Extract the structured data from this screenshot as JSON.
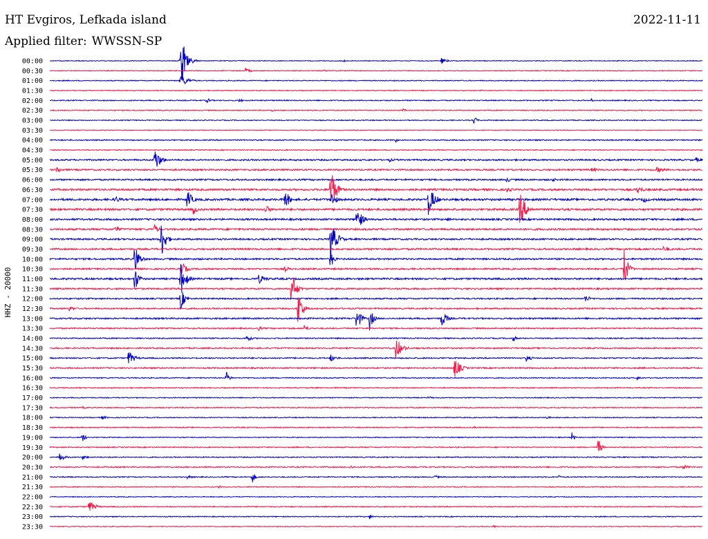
{
  "header": {
    "station": "HT Evgiros, Lefkada island",
    "filter_label": "Applied filter:",
    "filter_value": "WWSSN-SP",
    "date": "2022-11-11"
  },
  "chart_data": {
    "type": "line",
    "ylabel": "HHZ - 20000",
    "colors": [
      "#0000cc",
      "#ff1040"
    ],
    "rows": [
      {
        "label": "00:00",
        "color": "#0000cc",
        "noise": 0.6,
        "events": [
          {
            "t": 0.2,
            "a": 50,
            "w": 0.007
          },
          {
            "t": 0.45,
            "a": 3,
            "w": 0.003
          },
          {
            "t": 0.6,
            "a": 5,
            "w": 0.008
          }
        ]
      },
      {
        "label": "00:30",
        "color": "#ff1040",
        "noise": 0.6,
        "events": [
          {
            "t": 0.3,
            "a": 4,
            "w": 0.007
          },
          {
            "t": 0.42,
            "a": 2,
            "w": 0.005
          }
        ]
      },
      {
        "label": "01:00",
        "color": "#0000cc",
        "noise": 0.7,
        "events": [
          {
            "t": 0.2,
            "a": 10,
            "w": 0.01
          }
        ]
      },
      {
        "label": "01:30",
        "color": "#ff1040",
        "noise": 0.6,
        "events": [
          {
            "t": 0.66,
            "a": 2,
            "w": 0.004
          }
        ]
      },
      {
        "label": "02:00",
        "color": "#0000cc",
        "noise": 0.8,
        "events": [
          {
            "t": 0.24,
            "a": 4,
            "w": 0.007
          },
          {
            "t": 0.29,
            "a": 3,
            "w": 0.006
          },
          {
            "t": 0.83,
            "a": 3,
            "w": 0.003
          }
        ]
      },
      {
        "label": "02:30",
        "color": "#ff1040",
        "noise": 0.7,
        "events": [
          {
            "t": 0.34,
            "a": 2,
            "w": 0.004
          },
          {
            "t": 0.54,
            "a": 3,
            "w": 0.005
          }
        ]
      },
      {
        "label": "03:00",
        "color": "#0000cc",
        "noise": 0.7,
        "events": [
          {
            "t": 0.65,
            "a": 9,
            "w": 0.003
          }
        ]
      },
      {
        "label": "03:30",
        "color": "#ff1040",
        "noise": 0.5,
        "events": []
      },
      {
        "label": "04:00",
        "color": "#0000cc",
        "noise": 0.9,
        "events": [
          {
            "t": 0.53,
            "a": 3,
            "w": 0.004
          }
        ]
      },
      {
        "label": "04:30",
        "color": "#ff1040",
        "noise": 0.7,
        "events": []
      },
      {
        "label": "05:00",
        "color": "#0000cc",
        "noise": 1.2,
        "events": [
          {
            "t": 0.16,
            "a": 20,
            "w": 0.008
          },
          {
            "t": 0.52,
            "a": 3,
            "w": 0.008
          },
          {
            "t": 0.99,
            "a": 4,
            "w": 0.01
          }
        ]
      },
      {
        "label": "05:30",
        "color": "#ff1040",
        "noise": 1.2,
        "events": [
          {
            "t": 0.01,
            "a": 6,
            "w": 0.008
          },
          {
            "t": 0.83,
            "a": 3,
            "w": 0.015
          },
          {
            "t": 0.93,
            "a": 4,
            "w": 0.015
          }
        ]
      },
      {
        "label": "06:00",
        "color": "#0000cc",
        "noise": 1.2,
        "events": [
          {
            "t": 0.7,
            "a": 4,
            "w": 0.008
          },
          {
            "t": 0.77,
            "a": 3,
            "w": 0.008
          }
        ]
      },
      {
        "label": "06:30",
        "color": "#ff1040",
        "noise": 1.5,
        "events": [
          {
            "t": 0.43,
            "a": 38,
            "w": 0.007
          },
          {
            "t": 0.7,
            "a": 5,
            "w": 0.008
          },
          {
            "t": 0.9,
            "a": 6,
            "w": 0.01
          }
        ]
      },
      {
        "label": "07:00",
        "color": "#0000cc",
        "noise": 1.6,
        "events": [
          {
            "t": 0.1,
            "a": 6,
            "w": 0.008
          },
          {
            "t": 0.21,
            "a": 16,
            "w": 0.007
          },
          {
            "t": 0.36,
            "a": 18,
            "w": 0.006
          },
          {
            "t": 0.43,
            "a": 14,
            "w": 0.007
          },
          {
            "t": 0.58,
            "a": 25,
            "w": 0.008
          },
          {
            "t": 0.91,
            "a": 5,
            "w": 0.008
          }
        ]
      },
      {
        "label": "07:30",
        "color": "#ff1040",
        "noise": 1.6,
        "events": [
          {
            "t": 0.22,
            "a": 9,
            "w": 0.005
          },
          {
            "t": 0.33,
            "a": 7,
            "w": 0.008
          },
          {
            "t": 0.72,
            "a": 28,
            "w": 0.008
          }
        ]
      },
      {
        "label": "08:00",
        "color": "#0000cc",
        "noise": 1.4,
        "events": [
          {
            "t": 0.47,
            "a": 22,
            "w": 0.007
          },
          {
            "t": 0.61,
            "a": 3,
            "w": 0.008
          }
        ]
      },
      {
        "label": "08:30",
        "color": "#ff1040",
        "noise": 1.4,
        "events": [
          {
            "t": 0.1,
            "a": 6,
            "w": 0.008
          },
          {
            "t": 0.16,
            "a": 8,
            "w": 0.006
          }
        ]
      },
      {
        "label": "09:00",
        "color": "#0000cc",
        "noise": 1.3,
        "events": [
          {
            "t": 0.17,
            "a": 34,
            "w": 0.006
          },
          {
            "t": 0.43,
            "a": 30,
            "w": 0.008
          }
        ]
      },
      {
        "label": "09:30",
        "color": "#ff1040",
        "noise": 1.3,
        "events": [
          {
            "t": 0.94,
            "a": 4,
            "w": 0.012
          }
        ]
      },
      {
        "label": "10:00",
        "color": "#0000cc",
        "noise": 1.3,
        "events": [
          {
            "t": 0.13,
            "a": 26,
            "w": 0.006
          },
          {
            "t": 0.43,
            "a": 18,
            "w": 0.004
          }
        ]
      },
      {
        "label": "10:30",
        "color": "#ff1040",
        "noise": 1.2,
        "events": [
          {
            "t": 0.2,
            "a": 14,
            "w": 0.007
          },
          {
            "t": 0.36,
            "a": 4,
            "w": 0.008
          },
          {
            "t": 0.88,
            "a": 32,
            "w": 0.005
          }
        ]
      },
      {
        "label": "11:00",
        "color": "#0000cc",
        "noise": 1.4,
        "events": [
          {
            "t": 0.13,
            "a": 22,
            "w": 0.005
          },
          {
            "t": 0.2,
            "a": 28,
            "w": 0.007
          },
          {
            "t": 0.32,
            "a": 7,
            "w": 0.012
          }
        ]
      },
      {
        "label": "11:30",
        "color": "#ff1040",
        "noise": 1.2,
        "events": [
          {
            "t": 0.37,
            "a": 32,
            "w": 0.006
          }
        ]
      },
      {
        "label": "12:00",
        "color": "#0000cc",
        "noise": 1.1,
        "events": [
          {
            "t": 0.2,
            "a": 18,
            "w": 0.006
          },
          {
            "t": 0.82,
            "a": 6,
            "w": 0.008
          }
        ]
      },
      {
        "label": "12:30",
        "color": "#ff1040",
        "noise": 1.1,
        "events": [
          {
            "t": 0.03,
            "a": 4,
            "w": 0.008
          },
          {
            "t": 0.38,
            "a": 30,
            "w": 0.006
          }
        ]
      },
      {
        "label": "13:00",
        "color": "#0000cc",
        "noise": 1.2,
        "events": [
          {
            "t": 0.47,
            "a": 24,
            "w": 0.005
          },
          {
            "t": 0.49,
            "a": 18,
            "w": 0.005
          },
          {
            "t": 0.6,
            "a": 14,
            "w": 0.007
          }
        ]
      },
      {
        "label": "13:30",
        "color": "#ff1040",
        "noise": 1.0,
        "events": [
          {
            "t": 0.32,
            "a": 4,
            "w": 0.005
          },
          {
            "t": 0.39,
            "a": 6,
            "w": 0.005
          }
        ]
      },
      {
        "label": "14:00",
        "color": "#0000cc",
        "noise": 0.9,
        "events": [
          {
            "t": 0.3,
            "a": 6,
            "w": 0.008
          },
          {
            "t": 0.71,
            "a": 6,
            "w": 0.004
          }
        ]
      },
      {
        "label": "14:30",
        "color": "#ff1040",
        "noise": 1.0,
        "events": [
          {
            "t": 0.53,
            "a": 18,
            "w": 0.008
          }
        ]
      },
      {
        "label": "15:00",
        "color": "#0000cc",
        "noise": 1.0,
        "events": [
          {
            "t": 0.12,
            "a": 12,
            "w": 0.008
          },
          {
            "t": 0.43,
            "a": 6,
            "w": 0.008
          },
          {
            "t": 0.73,
            "a": 5,
            "w": 0.008
          }
        ]
      },
      {
        "label": "15:30",
        "color": "#ff1040",
        "noise": 1.0,
        "events": [
          {
            "t": 0.62,
            "a": 16,
            "w": 0.008
          }
        ]
      },
      {
        "label": "16:00",
        "color": "#0000cc",
        "noise": 0.8,
        "events": [
          {
            "t": 0.27,
            "a": 10,
            "w": 0.005
          },
          {
            "t": 0.9,
            "a": 3,
            "w": 0.006
          }
        ]
      },
      {
        "label": "16:30",
        "color": "#ff1040",
        "noise": 0.8,
        "events": []
      },
      {
        "label": "17:00",
        "color": "#0000cc",
        "noise": 0.7,
        "events": [
          {
            "t": 0.58,
            "a": 3,
            "w": 0.006
          }
        ]
      },
      {
        "label": "17:30",
        "color": "#ff1040",
        "noise": 0.8,
        "events": [
          {
            "t": 0.05,
            "a": 2,
            "w": 0.006
          }
        ]
      },
      {
        "label": "18:00",
        "color": "#0000cc",
        "noise": 0.7,
        "events": [
          {
            "t": 0.08,
            "a": 3,
            "w": 0.008
          },
          {
            "t": 0.76,
            "a": 3,
            "w": 0.006
          }
        ]
      },
      {
        "label": "18:30",
        "color": "#ff1040",
        "noise": 0.8,
        "events": [
          {
            "t": 0.65,
            "a": 3,
            "w": 0.004
          }
        ]
      },
      {
        "label": "19:00",
        "color": "#0000cc",
        "noise": 0.7,
        "events": [
          {
            "t": 0.05,
            "a": 8,
            "w": 0.004
          },
          {
            "t": 0.8,
            "a": 9,
            "w": 0.003
          }
        ]
      },
      {
        "label": "19:30",
        "color": "#ff1040",
        "noise": 0.8,
        "events": [
          {
            "t": 0.84,
            "a": 16,
            "w": 0.004
          }
        ]
      },
      {
        "label": "20:00",
        "color": "#0000cc",
        "noise": 0.8,
        "events": [
          {
            "t": 0.015,
            "a": 6,
            "w": 0.008
          },
          {
            "t": 0.05,
            "a": 3,
            "w": 0.01
          }
        ]
      },
      {
        "label": "20:30",
        "color": "#ff1040",
        "noise": 0.9,
        "events": [
          {
            "t": 0.46,
            "a": 3,
            "w": 0.008
          },
          {
            "t": 0.97,
            "a": 4,
            "w": 0.008
          }
        ]
      },
      {
        "label": "21:00",
        "color": "#0000cc",
        "noise": 0.8,
        "events": [
          {
            "t": 0.21,
            "a": 3,
            "w": 0.008
          },
          {
            "t": 0.31,
            "a": 10,
            "w": 0.004
          },
          {
            "t": 0.59,
            "a": 3,
            "w": 0.006
          },
          {
            "t": 0.78,
            "a": 3,
            "w": 0.003
          }
        ]
      },
      {
        "label": "21:30",
        "color": "#ff1040",
        "noise": 0.7,
        "events": [
          {
            "t": 0.26,
            "a": 3,
            "w": 0.004
          }
        ]
      },
      {
        "label": "22:00",
        "color": "#0000cc",
        "noise": 0.6,
        "events": []
      },
      {
        "label": "22:30",
        "color": "#ff1040",
        "noise": 0.8,
        "events": [
          {
            "t": 0.06,
            "a": 10,
            "w": 0.008
          }
        ]
      },
      {
        "label": "23:00",
        "color": "#0000cc",
        "noise": 0.7,
        "events": [
          {
            "t": 0.49,
            "a": 4,
            "w": 0.004
          }
        ]
      },
      {
        "label": "23:30",
        "color": "#ff1040",
        "noise": 0.6,
        "events": [
          {
            "t": 0.68,
            "a": 3,
            "w": 0.003
          }
        ]
      }
    ]
  }
}
